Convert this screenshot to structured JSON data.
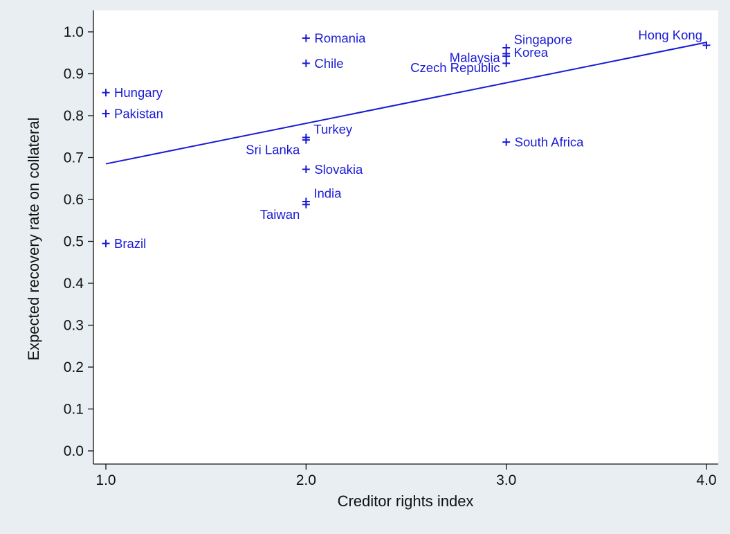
{
  "chart_data": {
    "type": "scatter",
    "title": "",
    "xlabel": "Creditor rights index",
    "ylabel": "Expected recovery rate on collateral",
    "xlim": [
      1.0,
      4.0
    ],
    "ylim": [
      0.0,
      1.0
    ],
    "xticks": [
      "1.0",
      "2.0",
      "3.0",
      "4.0"
    ],
    "yticks": [
      "0.0",
      "0.1",
      "0.2",
      "0.3",
      "0.4",
      "0.5",
      "0.6",
      "0.7",
      "0.8",
      "0.9",
      "1.0"
    ],
    "grid": false,
    "legend": "none",
    "marker_color": "#1a1ad6",
    "points": [
      {
        "label": "Romania",
        "x": 2.0,
        "y": 0.985
      },
      {
        "label": "Chile",
        "x": 2.0,
        "y": 0.925
      },
      {
        "label": "Hungary",
        "x": 1.0,
        "y": 0.855
      },
      {
        "label": "Pakistan",
        "x": 1.0,
        "y": 0.805
      },
      {
        "label": "Turkey",
        "x": 2.0,
        "y": 0.748
      },
      {
        "label": "Sri Lanka",
        "x": 2.0,
        "y": 0.742
      },
      {
        "label": "Slovakia",
        "x": 2.0,
        "y": 0.672
      },
      {
        "label": "India",
        "x": 2.0,
        "y": 0.595
      },
      {
        "label": "Taiwan",
        "x": 2.0,
        "y": 0.588
      },
      {
        "label": "Brazil",
        "x": 1.0,
        "y": 0.495
      },
      {
        "label": "Singapore",
        "x": 3.0,
        "y": 0.962
      },
      {
        "label": "Korea",
        "x": 3.0,
        "y": 0.948
      },
      {
        "label": "Malaysia",
        "x": 3.0,
        "y": 0.942
      },
      {
        "label": "Czech Republic",
        "x": 3.0,
        "y": 0.925
      },
      {
        "label": "South Africa",
        "x": 3.0,
        "y": 0.737
      },
      {
        "label": "Hong Kong",
        "x": 4.0,
        "y": 0.968
      }
    ],
    "fit_line": {
      "x": [
        1.0,
        4.0
      ],
      "y": [
        0.685,
        0.975
      ]
    }
  }
}
